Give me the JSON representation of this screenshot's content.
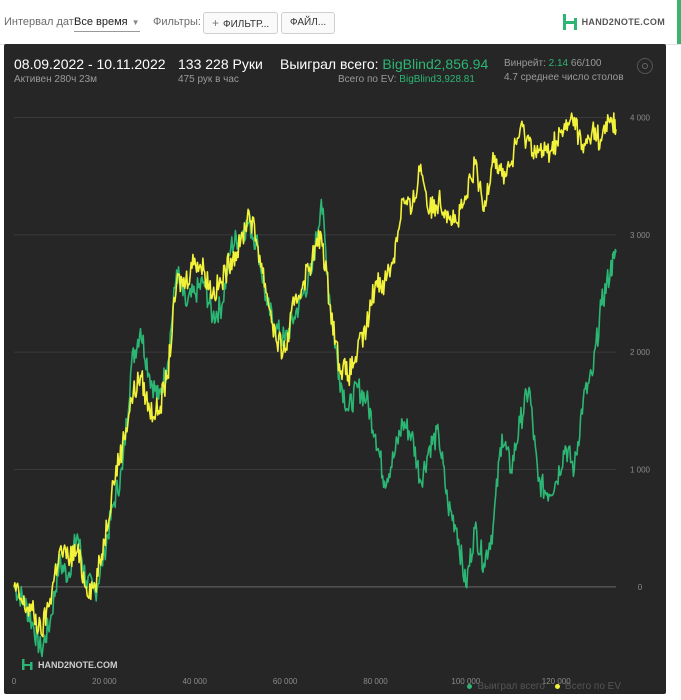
{
  "toolbar": {
    "date_interval_label": "Интервал дат:",
    "date_interval_value": "Все время",
    "filters_label": "Фильтры:",
    "filter_button": "ФИЛЬТР...",
    "file_button": "ФАЙЛ..."
  },
  "brand": {
    "logo_text": "HAND2NOTE.COM",
    "watermark_text": "HAND2NOTE.COM"
  },
  "summary": {
    "date_range": "08.09.2022 - 10.11.2022",
    "active": "Активен 280ч 23м",
    "hands": "133 228 Руки",
    "hands_per_hour": "475 рук в час",
    "won_label": "Выиграл всего:",
    "won_value": "BigBlind2,856.94",
    "ev_label": "Всего по EV:",
    "ev_value": "BigBlind3,928.81",
    "winrate_label": "Винрейт:",
    "winrate_value": "2.14",
    "winrate_suffix": "66/100",
    "avg_tables": "4.7 среднее число столов"
  },
  "colors": {
    "won": "#2bb673",
    "ev": "#f2f23a",
    "background": "#262626"
  },
  "chart_data": {
    "type": "line",
    "xlim": [
      0,
      133228
    ],
    "ylim": [
      -700,
      4200
    ],
    "x_ticks": [
      0,
      20000,
      40000,
      60000,
      80000,
      100000,
      120000
    ],
    "x_tick_labels": [
      "0",
      "20 000",
      "40 000",
      "60 000",
      "80 000",
      "100 000",
      "120 000"
    ],
    "y_ticks": [
      0,
      1000,
      2000,
      3000,
      4000
    ],
    "y_tick_labels": [
      "0",
      "1 000",
      "2 000",
      "3 000",
      "4 000"
    ],
    "grid": true,
    "legend": "bottom-right",
    "x": [
      0,
      2000,
      4000,
      6000,
      8000,
      10000,
      12000,
      14000,
      16000,
      18000,
      20000,
      22000,
      24000,
      26000,
      28000,
      30000,
      32000,
      34000,
      36000,
      38000,
      40000,
      42000,
      44000,
      46000,
      48000,
      50000,
      52000,
      54000,
      56000,
      58000,
      60000,
      62000,
      64000,
      66000,
      68000,
      70000,
      72000,
      74000,
      76000,
      78000,
      80000,
      82000,
      84000,
      86000,
      88000,
      90000,
      92000,
      94000,
      96000,
      98000,
      100000,
      102000,
      104000,
      106000,
      108000,
      110000,
      112000,
      114000,
      116000,
      118000,
      120000,
      122000,
      124000,
      126000,
      128000,
      130000,
      132000,
      133228
    ],
    "series": [
      {
        "name": "Выиграл всего",
        "color_key": "won",
        "values": [
          0,
          -100,
          -300,
          -550,
          -300,
          200,
          100,
          450,
          50,
          -50,
          300,
          700,
          1000,
          1900,
          2200,
          1800,
          1600,
          1900,
          2700,
          2400,
          2500,
          2600,
          2300,
          2400,
          2900,
          3000,
          3100,
          2900,
          2400,
          2200,
          2100,
          2300,
          2500,
          2700,
          3300,
          2400,
          1800,
          1500,
          1700,
          1600,
          1300,
          900,
          1100,
          1400,
          1300,
          900,
          1200,
          1300,
          700,
          500,
          0,
          500,
          200,
          500,
          1300,
          1000,
          1400,
          1700,
          900,
          800,
          900,
          1200,
          1000,
          1600,
          1800,
          2400,
          2700,
          2850
        ]
      },
      {
        "name": "Всего по EV",
        "color_key": "ev",
        "values": [
          0,
          -150,
          -200,
          -400,
          -100,
          300,
          250,
          300,
          0,
          0,
          400,
          900,
          1200,
          1600,
          1800,
          1500,
          1500,
          1800,
          2600,
          2600,
          2800,
          2700,
          2500,
          2600,
          2800,
          2900,
          3200,
          2900,
          2500,
          2100,
          2000,
          2400,
          2600,
          2800,
          3000,
          2400,
          1900,
          1800,
          2000,
          2200,
          2600,
          2600,
          2800,
          3300,
          3200,
          3600,
          3200,
          3300,
          3200,
          3100,
          3300,
          3600,
          3200,
          3700,
          3500,
          3600,
          3900,
          3800,
          3700,
          3700,
          3800,
          3900,
          4000,
          3700,
          3900,
          3800,
          4000,
          3900
        ]
      }
    ]
  }
}
